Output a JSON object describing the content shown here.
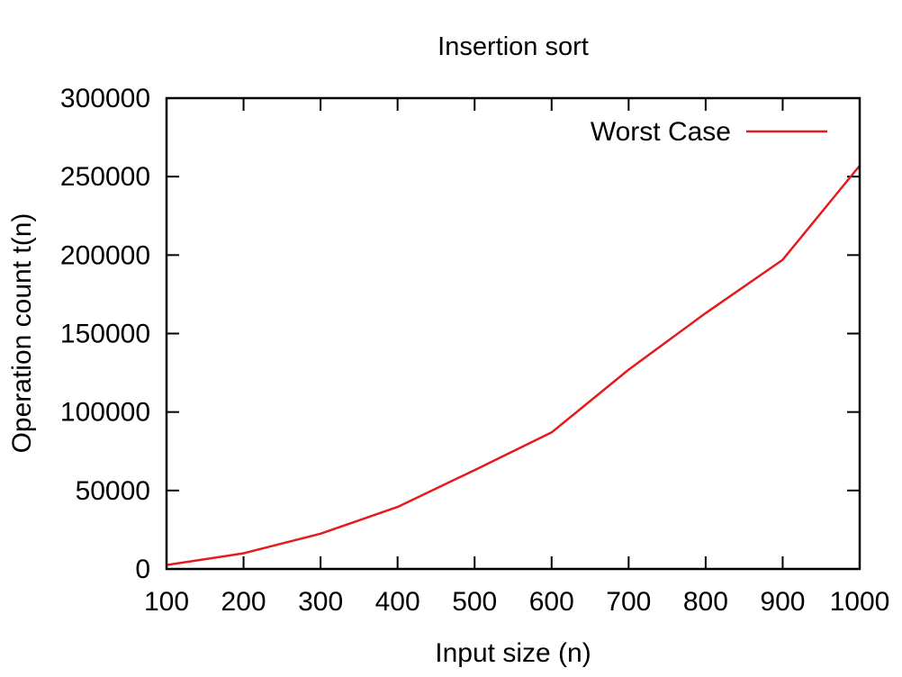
{
  "chart_data": {
    "type": "line",
    "title": "Insertion sort",
    "xlabel": "Input size (n)",
    "ylabel": "Operation count t(n)",
    "xlim": [
      100,
      1000
    ],
    "ylim": [
      0,
      300000
    ],
    "xticks": [
      100,
      200,
      300,
      400,
      500,
      600,
      700,
      800,
      900,
      1000
    ],
    "xtick_labels": [
      "100",
      "200",
      "300",
      "400",
      "500",
      "600",
      "700",
      "800",
      "900",
      "1000"
    ],
    "yticks": [
      0,
      50000,
      100000,
      150000,
      200000,
      250000,
      300000
    ],
    "ytick_labels": [
      "0",
      "50000",
      "100000",
      "150000",
      "200000",
      "250000",
      "300000"
    ],
    "grid": false,
    "legend_position": "top-right",
    "series": [
      {
        "name": "Worst Case",
        "color": "#e41a1c",
        "x": [
          100,
          200,
          300,
          400,
          500,
          600,
          700,
          800,
          900,
          1000
        ],
        "y": [
          2500,
          10000,
          22500,
          39500,
          63000,
          87000,
          127000,
          163000,
          197000,
          257000
        ]
      }
    ]
  }
}
